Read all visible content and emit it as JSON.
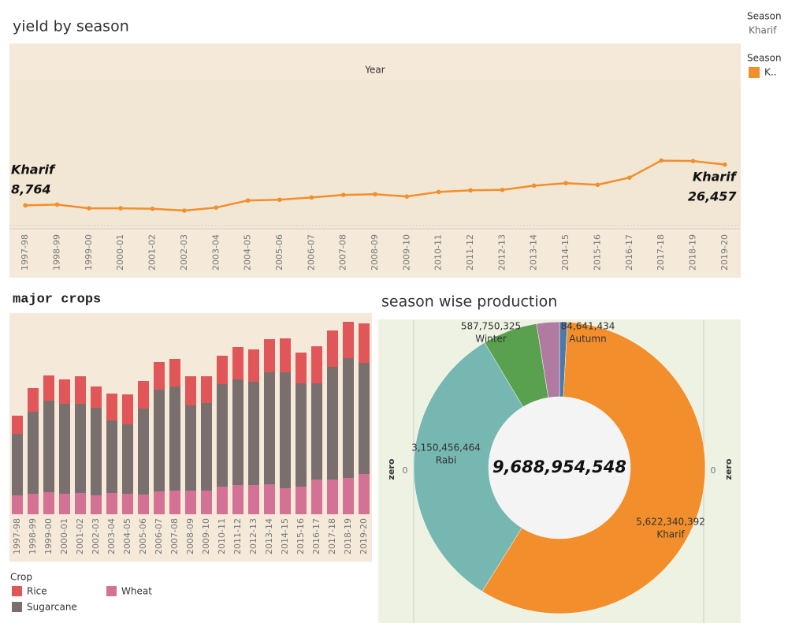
{
  "legend_panel": {
    "filter_title": "Season",
    "filter_value": "Kharif",
    "legend_title": "Season",
    "legend_entry": "K.."
  },
  "chart_data": [
    {
      "type": "line",
      "title": "yield by season",
      "x_header": "Year",
      "categories": [
        "1997-98",
        "1998-99",
        "1999-00",
        "2000-01",
        "2001-02",
        "2002-03",
        "2003-04",
        "2004-05",
        "2005-06",
        "2006-07",
        "2007-08",
        "2008-09",
        "2009-10",
        "2010-11",
        "2011-12",
        "2012-13",
        "2013-14",
        "2014-15",
        "2015-16",
        "2016-17",
        "2017-18",
        "2018-19",
        "2019-20"
      ],
      "series": [
        {
          "name": "Kharif",
          "color": "#f28e2b",
          "values": [
            8764,
            9100,
            7500,
            7500,
            7300,
            6500,
            7800,
            10900,
            11200,
            12200,
            13300,
            13600,
            12600,
            14600,
            15300,
            15500,
            17300,
            18400,
            17700,
            20800,
            28200,
            28000,
            26457
          ],
          "value_labels": [
            "8,764",
            null,
            null,
            null,
            null,
            null,
            null,
            null,
            null,
            null,
            null,
            null,
            null,
            null,
            null,
            null,
            null,
            null,
            null,
            null,
            null,
            null,
            "26,457"
          ]
        }
      ],
      "ylim": [
        0,
        78000
      ]
    },
    {
      "type": "bar",
      "stacked": true,
      "title": "major crops",
      "legend_title": "Crop",
      "categories": [
        "1997-98",
        "1998-99",
        "1999-00",
        "2000-01",
        "2001-02",
        "2002-03",
        "2003-04",
        "2004-05",
        "2005-06",
        "2006-07",
        "2007-08",
        "2008-09",
        "2009-10",
        "2010-11",
        "2011-12",
        "2012-13",
        "2013-14",
        "2014-15",
        "2015-16",
        "2016-17",
        "2017-18",
        "2018-19",
        "2019-20"
      ],
      "series": [
        {
          "name": "Rice",
          "color": "#e15759",
          "values": [
            23,
            30,
            32,
            31,
            35,
            27,
            34,
            38,
            35,
            35,
            35,
            37,
            34,
            36,
            41,
            41,
            42,
            43,
            39,
            47,
            46,
            46,
            50
          ]
        },
        {
          "name": "Sugarcane",
          "color": "#79706e",
          "values": [
            78,
            104,
            116,
            114,
            113,
            111,
            92,
            88,
            109,
            129,
            132,
            108,
            111,
            130,
            134,
            131,
            142,
            147,
            131,
            122,
            143,
            152,
            141
          ]
        },
        {
          "name": "Wheat",
          "color": "#d37295",
          "values": [
            24,
            26,
            28,
            26,
            27,
            24,
            27,
            26,
            25,
            29,
            30,
            30,
            30,
            35,
            37,
            37,
            38,
            33,
            35,
            44,
            44,
            46,
            51
          ]
        }
      ],
      "ylim": [
        0,
        255
      ]
    },
    {
      "type": "pie",
      "title": "season wise production",
      "categories": [
        "Autumn",
        "Kharif",
        "Rabi",
        "Winter",
        null
      ],
      "values": [
        84641434,
        5622340392,
        3150456464,
        587750325,
        243765933
      ],
      "value_labels": [
        "84,641,434",
        "5,622,340,392",
        "3,150,456,464",
        "587,750,325",
        null
      ],
      "colors": [
        "#4e79a7",
        "#f28e2b",
        "#76b7b2",
        "#59a14f",
        "#b07aa1"
      ],
      "center_label": "9,688,954,548",
      "axis_title": "zero",
      "axis_tick": "0"
    }
  ]
}
